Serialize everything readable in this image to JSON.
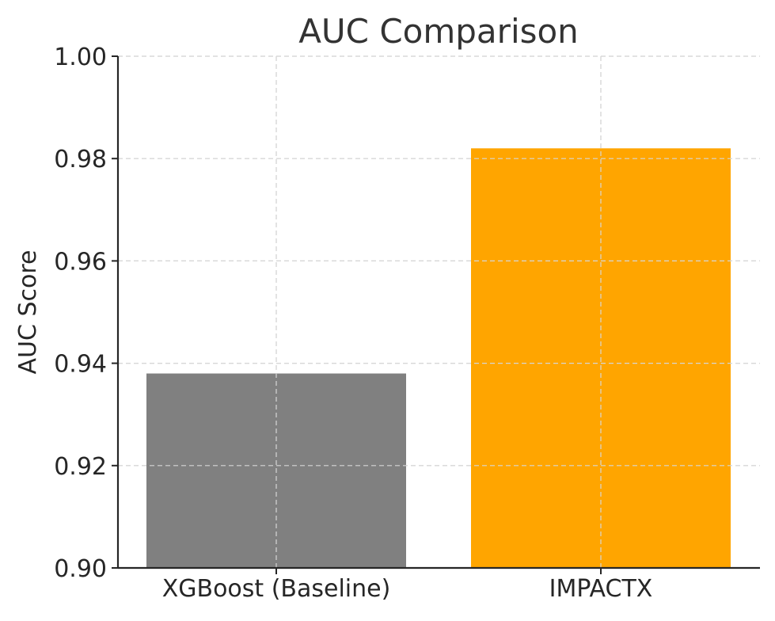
{
  "chart_data": {
    "type": "bar",
    "title": "AUC Comparison",
    "xlabel": "",
    "ylabel": "AUC Score",
    "categories": [
      "XGBoost (Baseline)",
      "IMPACTX"
    ],
    "values": [
      0.938,
      0.982
    ],
    "colors": [
      "#808080",
      "#FFA500"
    ],
    "ylim": [
      0.9,
      1.0
    ],
    "yticks": [
      "0.90",
      "0.92",
      "0.94",
      "0.96",
      "0.98",
      "1.00"
    ],
    "grid": true,
    "grid_style": "dashed",
    "legend": "none"
  }
}
